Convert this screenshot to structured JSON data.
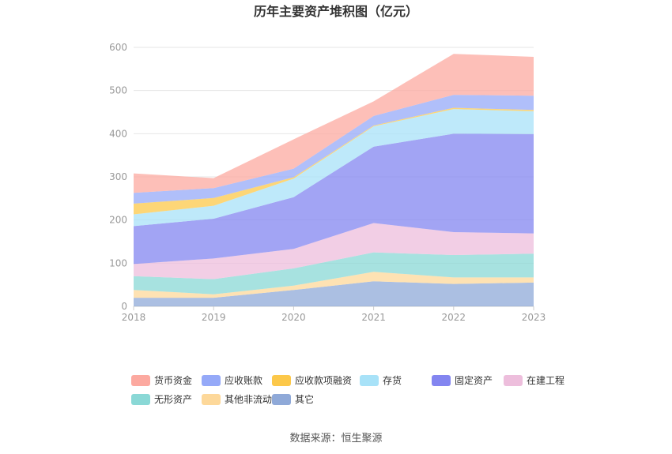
{
  "chart_data": {
    "type": "area",
    "stacked": true,
    "title": "历年主要资产堆积图（亿元）",
    "x": [
      "2018",
      "2019",
      "2020",
      "2021",
      "2022",
      "2023"
    ],
    "ylim": [
      0,
      600
    ],
    "yticks": [
      0,
      100,
      200,
      300,
      400,
      500,
      600
    ],
    "grid": true,
    "legend_position": "bottom",
    "series": [
      {
        "name": "其它",
        "color": "#8FA9D8",
        "values": [
          20,
          20,
          38,
          58,
          52,
          55
        ]
      },
      {
        "name": "其他非流动资产",
        "color": "#FDD89A",
        "values": [
          18,
          8,
          10,
          22,
          15,
          12
        ]
      },
      {
        "name": "无形资产",
        "color": "#8AD8D6",
        "values": [
          32,
          35,
          40,
          45,
          52,
          55
        ]
      },
      {
        "name": "在建工程",
        "color": "#EDBEDC",
        "values": [
          28,
          48,
          45,
          68,
          53,
          47
        ]
      },
      {
        "name": "固定资产",
        "color": "#8385F0",
        "values": [
          88,
          92,
          120,
          177,
          228,
          230
        ]
      },
      {
        "name": "存货",
        "color": "#A8E2F8",
        "values": [
          27,
          30,
          43,
          47,
          57,
          53
        ]
      },
      {
        "name": "应收款项融资",
        "color": "#FCC84A",
        "values": [
          25,
          18,
          3,
          2,
          3,
          3
        ]
      },
      {
        "name": "应收账款",
        "color": "#95A9F8",
        "values": [
          25,
          23,
          20,
          22,
          30,
          33
        ]
      },
      {
        "name": "货币资金",
        "color": "#FCA9A0",
        "values": [
          45,
          23,
          68,
          34,
          95,
          90
        ]
      }
    ],
    "legend_order": [
      "货币资金",
      "应收账款",
      "应收款项融资",
      "存货",
      "固定资产",
      "在建工程",
      "无形资产",
      "其他非流动资产",
      "其它"
    ]
  },
  "source": "数据来源：恒生聚源"
}
